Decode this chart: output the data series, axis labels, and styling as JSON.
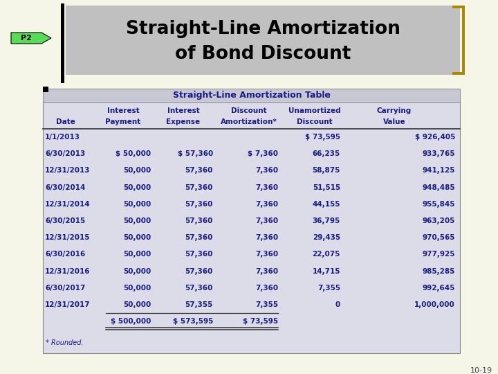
{
  "title_line1": "Straight-Line Amortization",
  "title_line2": "of Bond Discount",
  "table_title": "Straight-Line Amortization Table",
  "header_row1": [
    "",
    "Interest",
    "Interest",
    "Discount",
    "Unamortized",
    "Carrying"
  ],
  "header_row2": [
    "Date",
    "Payment",
    "Expense",
    "Amortization*",
    "Discount",
    "Value"
  ],
  "rows": [
    [
      "1/1/2013",
      "",
      "",
      "",
      "$ 73,595",
      "$ 926,405"
    ],
    [
      "6/30/2013",
      "$ 50,000",
      "$ 57,360",
      "$ 7,360",
      "66,235",
      "933,765"
    ],
    [
      "12/31/2013",
      "50,000",
      "57,360",
      "7,360",
      "58,875",
      "941,125"
    ],
    [
      "6/30/2014",
      "50,000",
      "57,360",
      "7,360",
      "51,515",
      "948,485"
    ],
    [
      "12/31/2014",
      "50,000",
      "57,360",
      "7,360",
      "44,155",
      "955,845"
    ],
    [
      "6/30/2015",
      "50,000",
      "57,360",
      "7,360",
      "36,795",
      "963,205"
    ],
    [
      "12/31/2015",
      "50,000",
      "57,360",
      "7,360",
      "29,435",
      "970,565"
    ],
    [
      "6/30/2016",
      "50,000",
      "57,360",
      "7,360",
      "22,075",
      "977,925"
    ],
    [
      "12/31/2016",
      "50,000",
      "57,360",
      "7,360",
      "14,715",
      "985,285"
    ],
    [
      "6/30/2017",
      "50,000",
      "57,360",
      "7,360",
      "7,355",
      "992,645"
    ],
    [
      "12/31/2017",
      "50,000",
      "57,355",
      "7,355",
      "0",
      "1,000,000"
    ]
  ],
  "total_row": [
    "",
    "$ 500,000",
    "$ 573,595",
    "$ 73,595",
    "",
    ""
  ],
  "footnote": "* Rounded.",
  "page_num": "10-19",
  "bg_color": "#f5f5e8",
  "table_bg": "#dcdce8",
  "title_bg": "#c0c0c0",
  "title_bar_bg": "#c8c8d4",
  "header_color": "#1a1a8c",
  "data_color": "#1a1a8c",
  "p2_color": "#55dd55",
  "bracket_color": "#aa8800",
  "black": "#000000",
  "table_border": "#888888",
  "line_color": "#333333"
}
